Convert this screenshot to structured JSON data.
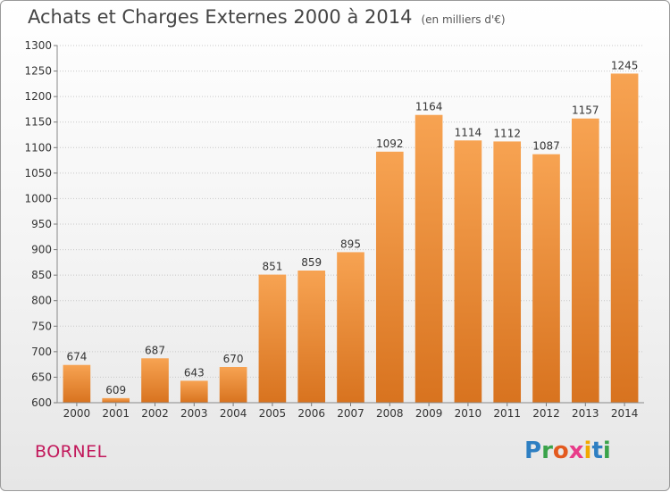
{
  "header": {
    "title": "Achats et Charges Externes 2000 à 2014",
    "subtitle": "(en milliers d'€)"
  },
  "commune": "BORNEL",
  "brand": {
    "text": "Proxiti",
    "colors": [
      "#2e7fc2",
      "#3aa34a",
      "#e35a1f",
      "#e83c8a",
      "#f2a900",
      "#2e7fc2",
      "#3aa34a"
    ]
  },
  "chart_data": {
    "type": "bar",
    "categories": [
      "2000",
      "2001",
      "2002",
      "2003",
      "2004",
      "2005",
      "2006",
      "2007",
      "2008",
      "2009",
      "2010",
      "2011",
      "2012",
      "2013",
      "2014"
    ],
    "values": [
      674,
      609,
      687,
      643,
      670,
      851,
      859,
      895,
      1092,
      1164,
      1114,
      1112,
      1087,
      1157,
      1245
    ],
    "ylim": [
      600,
      1300
    ],
    "yticks": [
      600,
      650,
      700,
      750,
      800,
      850,
      900,
      950,
      1000,
      1050,
      1100,
      1150,
      1200,
      1250,
      1300
    ],
    "grid": true,
    "bar_color_top": "#f7a352",
    "bar_color_bottom": "#d8731f"
  }
}
